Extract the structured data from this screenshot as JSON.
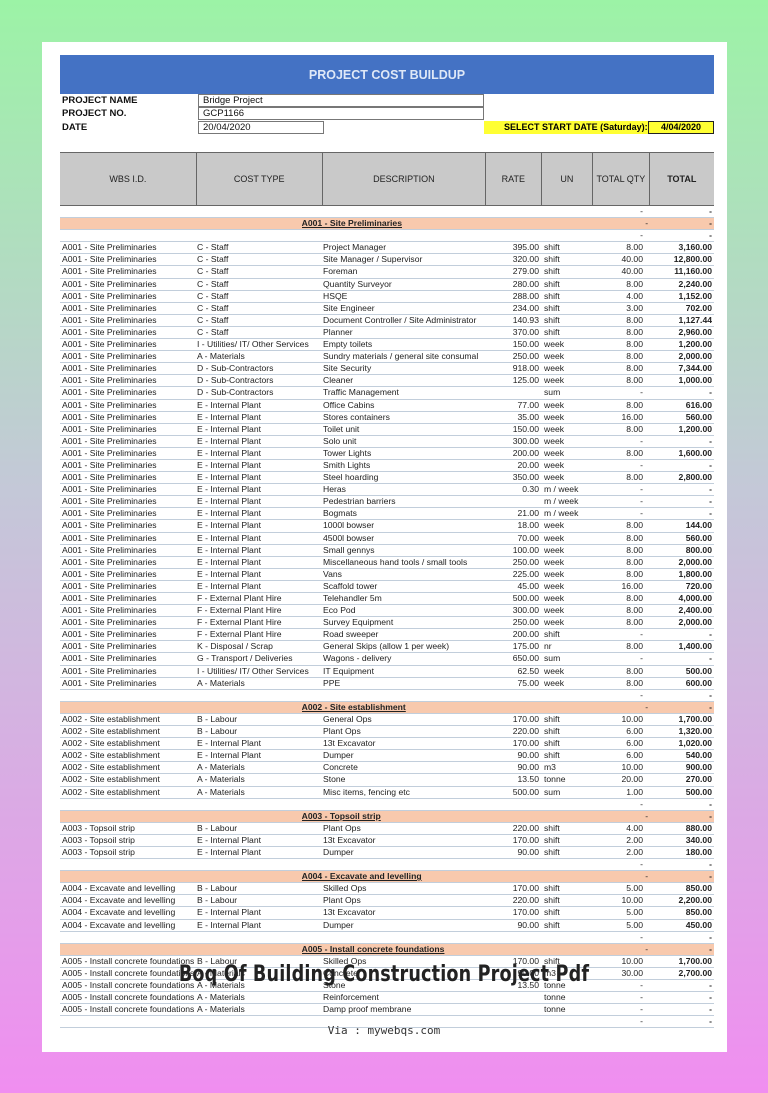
{
  "sheet": {
    "title": "PROJECT COST BUILDUP",
    "project_name_label": "PROJECT NAME",
    "project_name": "Bridge Project",
    "project_no_label": "PROJECT NO.",
    "project_no": "GCP1166",
    "date_label": "DATE",
    "date": "20/04/2020",
    "start_date_label": "SELECT START DATE (Saturday):",
    "start_date": "4/04/2020",
    "columns": [
      "WBS I.D.",
      "COST TYPE",
      "DESCRIPTION",
      "RATE",
      "UN",
      "TOTAL QTY",
      "TOTAL"
    ],
    "colors": {
      "banner": "#4472c4",
      "section": "#f8c9ad",
      "highlight": "#ffff33",
      "header": "#c9c9c9"
    },
    "rows": [
      {
        "blank": [
          "-",
          "-"
        ]
      },
      {
        "section": "A001 - Site Preliminaries",
        "qty": "-",
        "total": "-"
      },
      {
        "blank": [
          "-",
          "-"
        ]
      },
      {
        "cells": [
          "A001 - Site Preliminaries",
          "C - Staff",
          "Project Manager",
          "395.00",
          "shift",
          "8.00",
          "3,160.00"
        ]
      },
      {
        "cells": [
          "A001 - Site Preliminaries",
          "C - Staff",
          "Site Manager / Supervisor",
          "320.00",
          "shift",
          "40.00",
          "12,800.00"
        ]
      },
      {
        "cells": [
          "A001 - Site Preliminaries",
          "C - Staff",
          "Foreman",
          "279.00",
          "shift",
          "40.00",
          "11,160.00"
        ]
      },
      {
        "cells": [
          "A001 - Site Preliminaries",
          "C - Staff",
          "Quantity Surveyor",
          "280.00",
          "shift",
          "8.00",
          "2,240.00"
        ]
      },
      {
        "cells": [
          "A001 - Site Preliminaries",
          "C - Staff",
          "HSQE",
          "288.00",
          "shift",
          "4.00",
          "1,152.00"
        ]
      },
      {
        "cells": [
          "A001 - Site Preliminaries",
          "C - Staff",
          "Site Engineer",
          "234.00",
          "shift",
          "3.00",
          "702.00"
        ]
      },
      {
        "cells": [
          "A001 - Site Preliminaries",
          "C - Staff",
          "Document Controller / Site Administrator",
          "140.93",
          "shift",
          "8.00",
          "1,127.44"
        ]
      },
      {
        "cells": [
          "A001 - Site Preliminaries",
          "C - Staff",
          "Planner",
          "370.00",
          "shift",
          "8.00",
          "2,960.00"
        ]
      },
      {
        "cells": [
          "A001 - Site Preliminaries",
          "I - Utilities/ IT/ Other Services",
          "Empty toilets",
          "150.00",
          "week",
          "8.00",
          "1,200.00"
        ]
      },
      {
        "cells": [
          "A001 - Site Preliminaries",
          "A - Materials",
          "Sundry materials / general site consumal",
          "250.00",
          "week",
          "8.00",
          "2,000.00"
        ]
      },
      {
        "cells": [
          "A001 - Site Preliminaries",
          "D - Sub-Contractors",
          "Site Security",
          "918.00",
          "week",
          "8.00",
          "7,344.00"
        ]
      },
      {
        "cells": [
          "A001 - Site Preliminaries",
          "D - Sub-Contractors",
          "Cleaner",
          "125.00",
          "week",
          "8.00",
          "1,000.00"
        ]
      },
      {
        "cells": [
          "A001 - Site Preliminaries",
          "D - Sub-Contractors",
          "Traffic Management",
          "",
          "sum",
          "-",
          "-"
        ]
      },
      {
        "cells": [
          "A001 - Site Preliminaries",
          "E - Internal Plant",
          "Office Cabins",
          "77.00",
          "week",
          "8.00",
          "616.00"
        ]
      },
      {
        "cells": [
          "A001 - Site Preliminaries",
          "E - Internal Plant",
          "Stores containers",
          "35.00",
          "week",
          "16.00",
          "560.00"
        ]
      },
      {
        "cells": [
          "A001 - Site Preliminaries",
          "E - Internal Plant",
          "Toilet unit",
          "150.00",
          "week",
          "8.00",
          "1,200.00"
        ]
      },
      {
        "cells": [
          "A001 - Site Preliminaries",
          "E - Internal Plant",
          "Solo unit",
          "300.00",
          "week",
          "-",
          "-"
        ]
      },
      {
        "cells": [
          "A001 - Site Preliminaries",
          "E - Internal Plant",
          "Tower Lights",
          "200.00",
          "week",
          "8.00",
          "1,600.00"
        ]
      },
      {
        "cells": [
          "A001 - Site Preliminaries",
          "E - Internal Plant",
          "Smith Lights",
          "20.00",
          "week",
          "-",
          "-"
        ]
      },
      {
        "cells": [
          "A001 - Site Preliminaries",
          "E - Internal Plant",
          "Steel hoarding",
          "350.00",
          "week",
          "8.00",
          "2,800.00"
        ]
      },
      {
        "cells": [
          "A001 - Site Preliminaries",
          "E - Internal Plant",
          "Heras",
          "0.30",
          "m / week",
          "-",
          "-"
        ]
      },
      {
        "cells": [
          "A001 - Site Preliminaries",
          "E - Internal Plant",
          "Pedestrian barriers",
          "",
          "m / week",
          "-",
          "-"
        ]
      },
      {
        "cells": [
          "A001 - Site Preliminaries",
          "E - Internal Plant",
          "Bogmats",
          "21.00",
          "m / week",
          "-",
          "-"
        ]
      },
      {
        "cells": [
          "A001 - Site Preliminaries",
          "E - Internal Plant",
          "1000l bowser",
          "18.00",
          "week",
          "8.00",
          "144.00"
        ]
      },
      {
        "cells": [
          "A001 - Site Preliminaries",
          "E - Internal Plant",
          "4500l bowser",
          "70.00",
          "week",
          "8.00",
          "560.00"
        ]
      },
      {
        "cells": [
          "A001 - Site Preliminaries",
          "E - Internal Plant",
          "Small gennys",
          "100.00",
          "week",
          "8.00",
          "800.00"
        ]
      },
      {
        "cells": [
          "A001 - Site Preliminaries",
          "E - Internal Plant",
          "Miscellaneous hand tools / small tools",
          "250.00",
          "week",
          "8.00",
          "2,000.00"
        ]
      },
      {
        "cells": [
          "A001 - Site Preliminaries",
          "E - Internal Plant",
          "Vans",
          "225.00",
          "week",
          "8.00",
          "1,800.00"
        ]
      },
      {
        "cells": [
          "A001 - Site Preliminaries",
          "E - Internal Plant",
          "Scaffold tower",
          "45.00",
          "week",
          "16.00",
          "720.00"
        ]
      },
      {
        "cells": [
          "A001 - Site Preliminaries",
          "F - External Plant Hire",
          "Telehandler 5m",
          "500.00",
          "week",
          "8.00",
          "4,000.00"
        ]
      },
      {
        "cells": [
          "A001 - Site Preliminaries",
          "F - External Plant Hire",
          "Eco Pod",
          "300.00",
          "week",
          "8.00",
          "2,400.00"
        ]
      },
      {
        "cells": [
          "A001 - Site Preliminaries",
          "F - External Plant Hire",
          "Survey Equipment",
          "250.00",
          "week",
          "8.00",
          "2,000.00"
        ]
      },
      {
        "cells": [
          "A001 - Site Preliminaries",
          "F - External Plant Hire",
          "Road sweeper",
          "200.00",
          "shift",
          "-",
          "-"
        ]
      },
      {
        "cells": [
          "A001 - Site Preliminaries",
          "K - Disposal / Scrap",
          "General Skips (allow 1 per week)",
          "175.00",
          "nr",
          "8.00",
          "1,400.00"
        ]
      },
      {
        "cells": [
          "A001 - Site Preliminaries",
          "G - Transport / Deliveries",
          "Wagons - delivery",
          "650.00",
          "sum",
          "-",
          "-"
        ]
      },
      {
        "cells": [
          "A001 - Site Preliminaries",
          "I - Utilities/ IT/ Other Services",
          "IT Equipment",
          "62.50",
          "week",
          "8.00",
          "500.00"
        ]
      },
      {
        "cells": [
          "A001 - Site Preliminaries",
          "A - Materials",
          "PPE",
          "75.00",
          "week",
          "8.00",
          "600.00"
        ]
      },
      {
        "blank": [
          "-",
          "-"
        ]
      },
      {
        "section": "A002 - Site establishment",
        "qty": "-",
        "total": "-"
      },
      {
        "cells": [
          "A002 - Site establishment",
          "B - Labour",
          "General Ops",
          "170.00",
          "shift",
          "10.00",
          "1,700.00"
        ]
      },
      {
        "cells": [
          "A002 - Site establishment",
          "B - Labour",
          "Plant Ops",
          "220.00",
          "shift",
          "6.00",
          "1,320.00"
        ]
      },
      {
        "cells": [
          "A002 - Site establishment",
          "E - Internal Plant",
          "13t Excavator",
          "170.00",
          "shift",
          "6.00",
          "1,020.00"
        ]
      },
      {
        "cells": [
          "A002 - Site establishment",
          "E - Internal Plant",
          "Dumper",
          "90.00",
          "shift",
          "6.00",
          "540.00"
        ]
      },
      {
        "cells": [
          "A002 - Site establishment",
          "A - Materials",
          "Concrete",
          "90.00",
          "m3",
          "10.00",
          "900.00"
        ]
      },
      {
        "cells": [
          "A002 - Site establishment",
          "A - Materials",
          "Stone",
          "13.50",
          "tonne",
          "20.00",
          "270.00"
        ]
      },
      {
        "cells": [
          "A002 - Site establishment",
          "A - Materials",
          "Misc items, fencing etc",
          "500.00",
          "sum",
          "1.00",
          "500.00"
        ]
      },
      {
        "blank": [
          "-",
          "-"
        ]
      },
      {
        "section": "A003 - Topsoil strip",
        "qty": "-",
        "total": "-"
      },
      {
        "cells": [
          "A003 - Topsoil strip",
          "B - Labour",
          "Plant Ops",
          "220.00",
          "shift",
          "4.00",
          "880.00"
        ]
      },
      {
        "cells": [
          "A003 - Topsoil strip",
          "E - Internal Plant",
          "13t Excavator",
          "170.00",
          "shift",
          "2.00",
          "340.00"
        ]
      },
      {
        "cells": [
          "A003 - Topsoil strip",
          "E - Internal Plant",
          "Dumper",
          "90.00",
          "shift",
          "2.00",
          "180.00"
        ]
      },
      {
        "blank": [
          "-",
          "-"
        ]
      },
      {
        "section": "A004 - Excavate and levelling",
        "qty": "-",
        "total": "-"
      },
      {
        "cells": [
          "A004 - Excavate and levelling",
          "B - Labour",
          "Skilled Ops",
          "170.00",
          "shift",
          "5.00",
          "850.00"
        ]
      },
      {
        "cells": [
          "A004 - Excavate and levelling",
          "B - Labour",
          "Plant Ops",
          "220.00",
          "shift",
          "10.00",
          "2,200.00"
        ]
      },
      {
        "cells": [
          "A004 - Excavate and levelling",
          "E - Internal Plant",
          "13t Excavator",
          "170.00",
          "shift",
          "5.00",
          "850.00"
        ]
      },
      {
        "cells": [
          "A004 - Excavate and levelling",
          "E - Internal Plant",
          "Dumper",
          "90.00",
          "shift",
          "5.00",
          "450.00"
        ]
      },
      {
        "blank": [
          "-",
          "-"
        ]
      },
      {
        "section": "A005 - Install concrete foundations",
        "qty": "-",
        "total": "-"
      },
      {
        "cells": [
          "A005 - Install concrete foundations",
          "B - Labour",
          "Skilled Ops",
          "170.00",
          "shift",
          "10.00",
          "1,700.00"
        ]
      },
      {
        "cells": [
          "A005 - Install concrete foundations",
          "A - Materials",
          "Concrete",
          "90.00",
          "m3",
          "30.00",
          "2,700.00"
        ]
      },
      {
        "cells": [
          "A005 - Install concrete foundations",
          "A - Materials",
          "Stone",
          "13.50",
          "tonne",
          "-",
          "-"
        ]
      },
      {
        "cells": [
          "A005 - Install concrete foundations",
          "A - Materials",
          "Reinforcement",
          "",
          "tonne",
          "-",
          "-"
        ]
      },
      {
        "cells": [
          "A005 - Install concrete foundations",
          "A - Materials",
          "Damp proof membrane",
          "",
          "tonne",
          "-",
          "-"
        ]
      },
      {
        "blank": [
          "-",
          "-"
        ]
      }
    ]
  },
  "caption": "Boq Of Building Construction Project Pdf",
  "via": "Via : mywebqs.com"
}
